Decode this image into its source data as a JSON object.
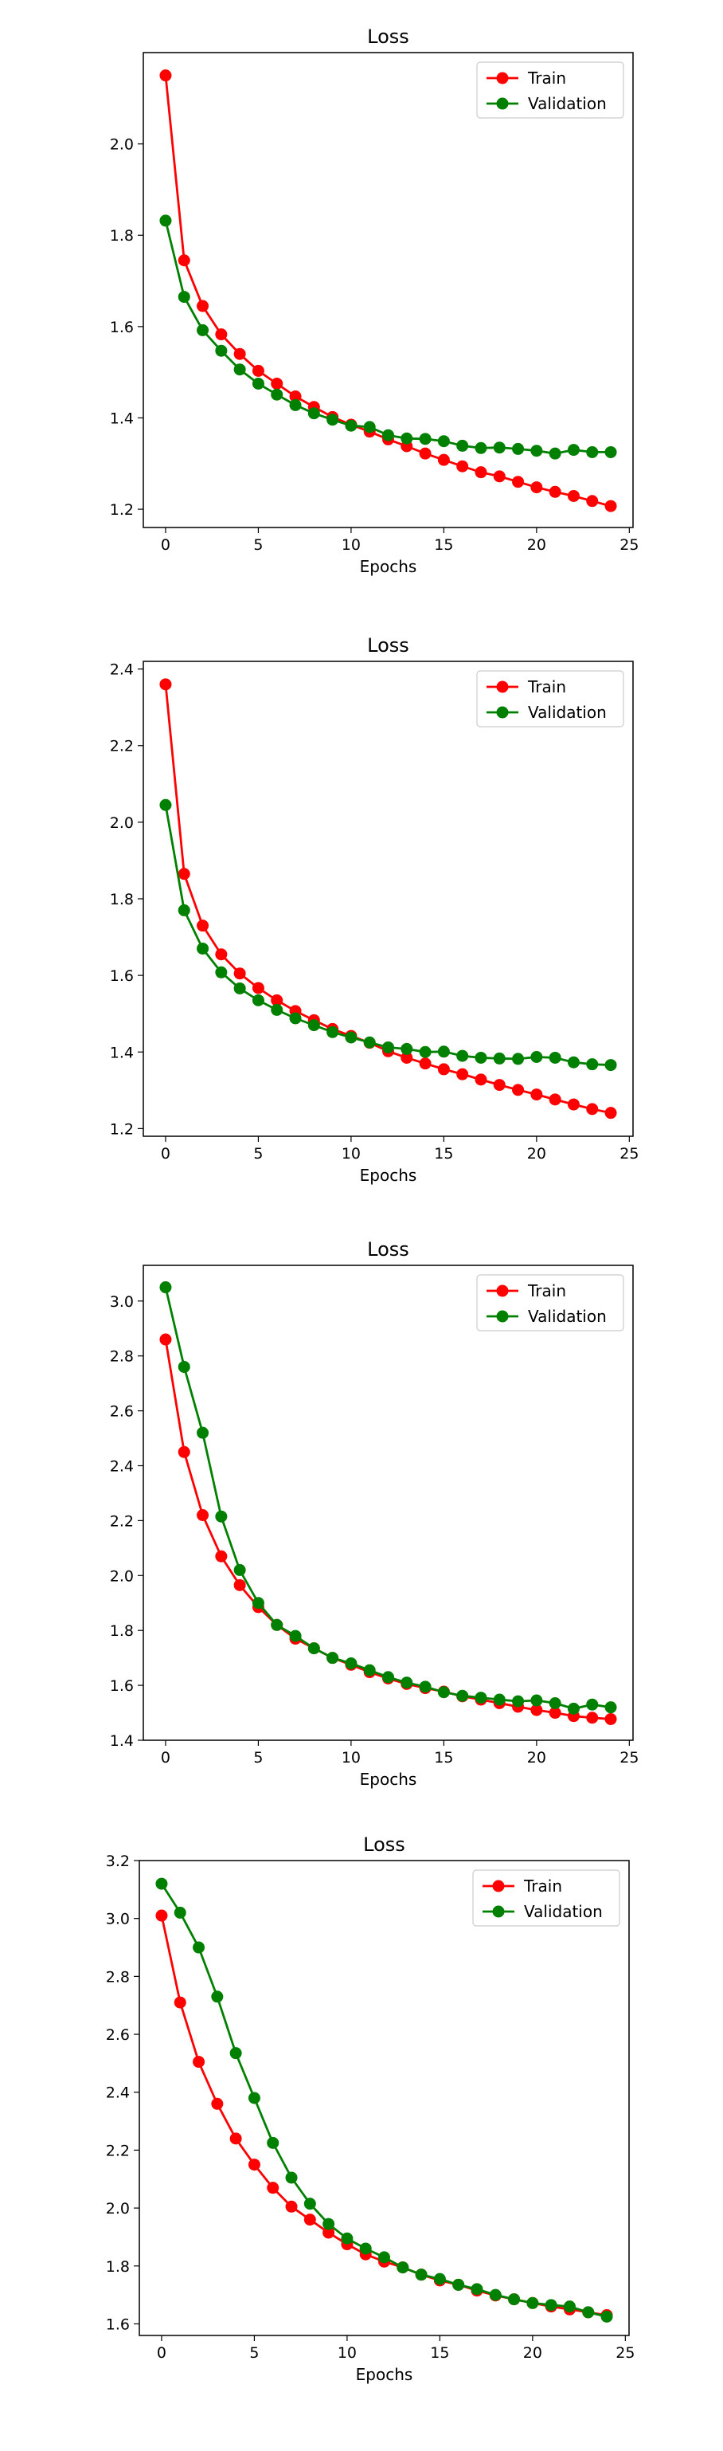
{
  "chart_data": [
    {
      "type": "line",
      "title": "Loss",
      "xlabel": "Epochs",
      "ylabel": "",
      "xlim": [
        -1.2,
        25.2
      ],
      "ylim": [
        1.16,
        2.2
      ],
      "x_ticks": [
        0,
        5,
        10,
        15,
        20,
        25
      ],
      "y_ticks": [
        1.2,
        1.4,
        1.6,
        1.8,
        2.0
      ],
      "y_tick_labels": [
        "1.2",
        "1.4",
        "1.6",
        "1.8",
        "2.0"
      ],
      "legend_position": "top-right",
      "x": [
        0,
        1,
        2,
        3,
        4,
        5,
        6,
        7,
        8,
        9,
        10,
        11,
        12,
        13,
        14,
        15,
        16,
        17,
        18,
        19,
        20,
        21,
        22,
        23,
        24
      ],
      "series": [
        {
          "name": "Train",
          "color": "#ff0000",
          "values": [
            2.15,
            1.745,
            1.645,
            1.583,
            1.54,
            1.503,
            1.475,
            1.447,
            1.424,
            1.402,
            1.385,
            1.37,
            1.353,
            1.338,
            1.322,
            1.308,
            1.294,
            1.281,
            1.272,
            1.26,
            1.248,
            1.238,
            1.229,
            1.218,
            1.207
          ]
        },
        {
          "name": "Validation",
          "color": "#008000",
          "values": [
            1.832,
            1.665,
            1.592,
            1.547,
            1.506,
            1.475,
            1.451,
            1.428,
            1.41,
            1.396,
            1.383,
            1.38,
            1.362,
            1.355,
            1.354,
            1.349,
            1.339,
            1.334,
            1.335,
            1.332,
            1.328,
            1.322,
            1.33,
            1.325,
            1.325
          ]
        }
      ]
    },
    {
      "type": "line",
      "title": "Loss",
      "xlabel": "Epochs",
      "ylabel": "",
      "xlim": [
        -1.2,
        25.2
      ],
      "ylim": [
        1.18,
        2.42
      ],
      "x_ticks": [
        0,
        5,
        10,
        15,
        20,
        25
      ],
      "y_ticks": [
        1.2,
        1.4,
        1.6,
        1.8,
        2.0,
        2.2,
        2.4
      ],
      "y_tick_labels": [
        "1.2",
        "1.4",
        "1.6",
        "1.8",
        "2.0",
        "2.2",
        "2.4"
      ],
      "legend_position": "top-right",
      "x": [
        0,
        1,
        2,
        3,
        4,
        5,
        6,
        7,
        8,
        9,
        10,
        11,
        12,
        13,
        14,
        15,
        16,
        17,
        18,
        19,
        20,
        21,
        22,
        23,
        24
      ],
      "series": [
        {
          "name": "Train",
          "color": "#ff0000",
          "values": [
            2.36,
            1.865,
            1.73,
            1.655,
            1.605,
            1.567,
            1.535,
            1.507,
            1.483,
            1.46,
            1.442,
            1.424,
            1.402,
            1.385,
            1.37,
            1.355,
            1.342,
            1.328,
            1.314,
            1.301,
            1.289,
            1.276,
            1.263,
            1.251,
            1.241
          ]
        },
        {
          "name": "Validation",
          "color": "#008000",
          "values": [
            2.045,
            1.77,
            1.67,
            1.608,
            1.566,
            1.535,
            1.51,
            1.488,
            1.47,
            1.452,
            1.438,
            1.425,
            1.412,
            1.408,
            1.4,
            1.401,
            1.39,
            1.385,
            1.383,
            1.382,
            1.387,
            1.385,
            1.373,
            1.368,
            1.366
          ]
        }
      ]
    },
    {
      "type": "line",
      "title": "Loss",
      "xlabel": "Epochs",
      "ylabel": "",
      "xlim": [
        -1.2,
        25.2
      ],
      "ylim": [
        1.4,
        3.13
      ],
      "x_ticks": [
        0,
        5,
        10,
        15,
        20,
        25
      ],
      "y_ticks": [
        1.4,
        1.6,
        1.8,
        2.0,
        2.2,
        2.4,
        2.6,
        2.8,
        3.0
      ],
      "y_tick_labels": [
        "1.4",
        "1.6",
        "1.8",
        "2.0",
        "2.2",
        "2.4",
        "2.6",
        "2.8",
        "3.0"
      ],
      "legend_position": "top-right",
      "x": [
        0,
        1,
        2,
        3,
        4,
        5,
        6,
        7,
        8,
        9,
        10,
        11,
        12,
        13,
        14,
        15,
        16,
        17,
        18,
        19,
        20,
        21,
        22,
        23,
        24
      ],
      "series": [
        {
          "name": "Train",
          "color": "#ff0000",
          "values": [
            2.86,
            2.45,
            2.22,
            2.07,
            1.965,
            1.885,
            1.82,
            1.77,
            1.735,
            1.7,
            1.675,
            1.648,
            1.625,
            1.605,
            1.59,
            1.577,
            1.56,
            1.548,
            1.535,
            1.522,
            1.51,
            1.5,
            1.488,
            1.482,
            1.477
          ]
        },
        {
          "name": "Validation",
          "color": "#008000",
          "values": [
            3.05,
            2.76,
            2.52,
            2.215,
            2.02,
            1.9,
            1.82,
            1.78,
            1.735,
            1.7,
            1.68,
            1.655,
            1.63,
            1.61,
            1.595,
            1.575,
            1.562,
            1.555,
            1.548,
            1.542,
            1.545,
            1.535,
            1.515,
            1.53,
            1.52
          ]
        }
      ]
    },
    {
      "type": "line",
      "title": "Loss",
      "xlabel": "Epochs",
      "ylabel": "",
      "xlim": [
        -1.2,
        25.2
      ],
      "ylim": [
        1.56,
        3.2
      ],
      "x_ticks": [
        0,
        5,
        10,
        15,
        20,
        25
      ],
      "y_ticks": [
        1.6,
        1.8,
        2.0,
        2.2,
        2.4,
        2.6,
        2.8,
        3.0,
        3.2
      ],
      "y_tick_labels": [
        "1.6",
        "1.8",
        "2.0",
        "2.2",
        "2.4",
        "2.6",
        "2.8",
        "3.0",
        "3.2"
      ],
      "legend_position": "top-right",
      "x": [
        0,
        1,
        2,
        3,
        4,
        5,
        6,
        7,
        8,
        9,
        10,
        11,
        12,
        13,
        14,
        15,
        16,
        17,
        18,
        19,
        20,
        21,
        22,
        23,
        24
      ],
      "series": [
        {
          "name": "Train",
          "color": "#ff0000",
          "values": [
            3.01,
            2.71,
            2.505,
            2.36,
            2.24,
            2.15,
            2.07,
            2.005,
            1.96,
            1.915,
            1.875,
            1.84,
            1.815,
            1.795,
            1.77,
            1.75,
            1.735,
            1.715,
            1.698,
            1.685,
            1.672,
            1.66,
            1.65,
            1.64,
            1.63
          ]
        },
        {
          "name": "Validation",
          "color": "#008000",
          "values": [
            3.12,
            3.02,
            2.9,
            2.73,
            2.535,
            2.38,
            2.225,
            2.105,
            2.015,
            1.945,
            1.895,
            1.86,
            1.83,
            1.795,
            1.77,
            1.755,
            1.735,
            1.72,
            1.7,
            1.685,
            1.672,
            1.665,
            1.66,
            1.64,
            1.625
          ]
        }
      ]
    }
  ]
}
